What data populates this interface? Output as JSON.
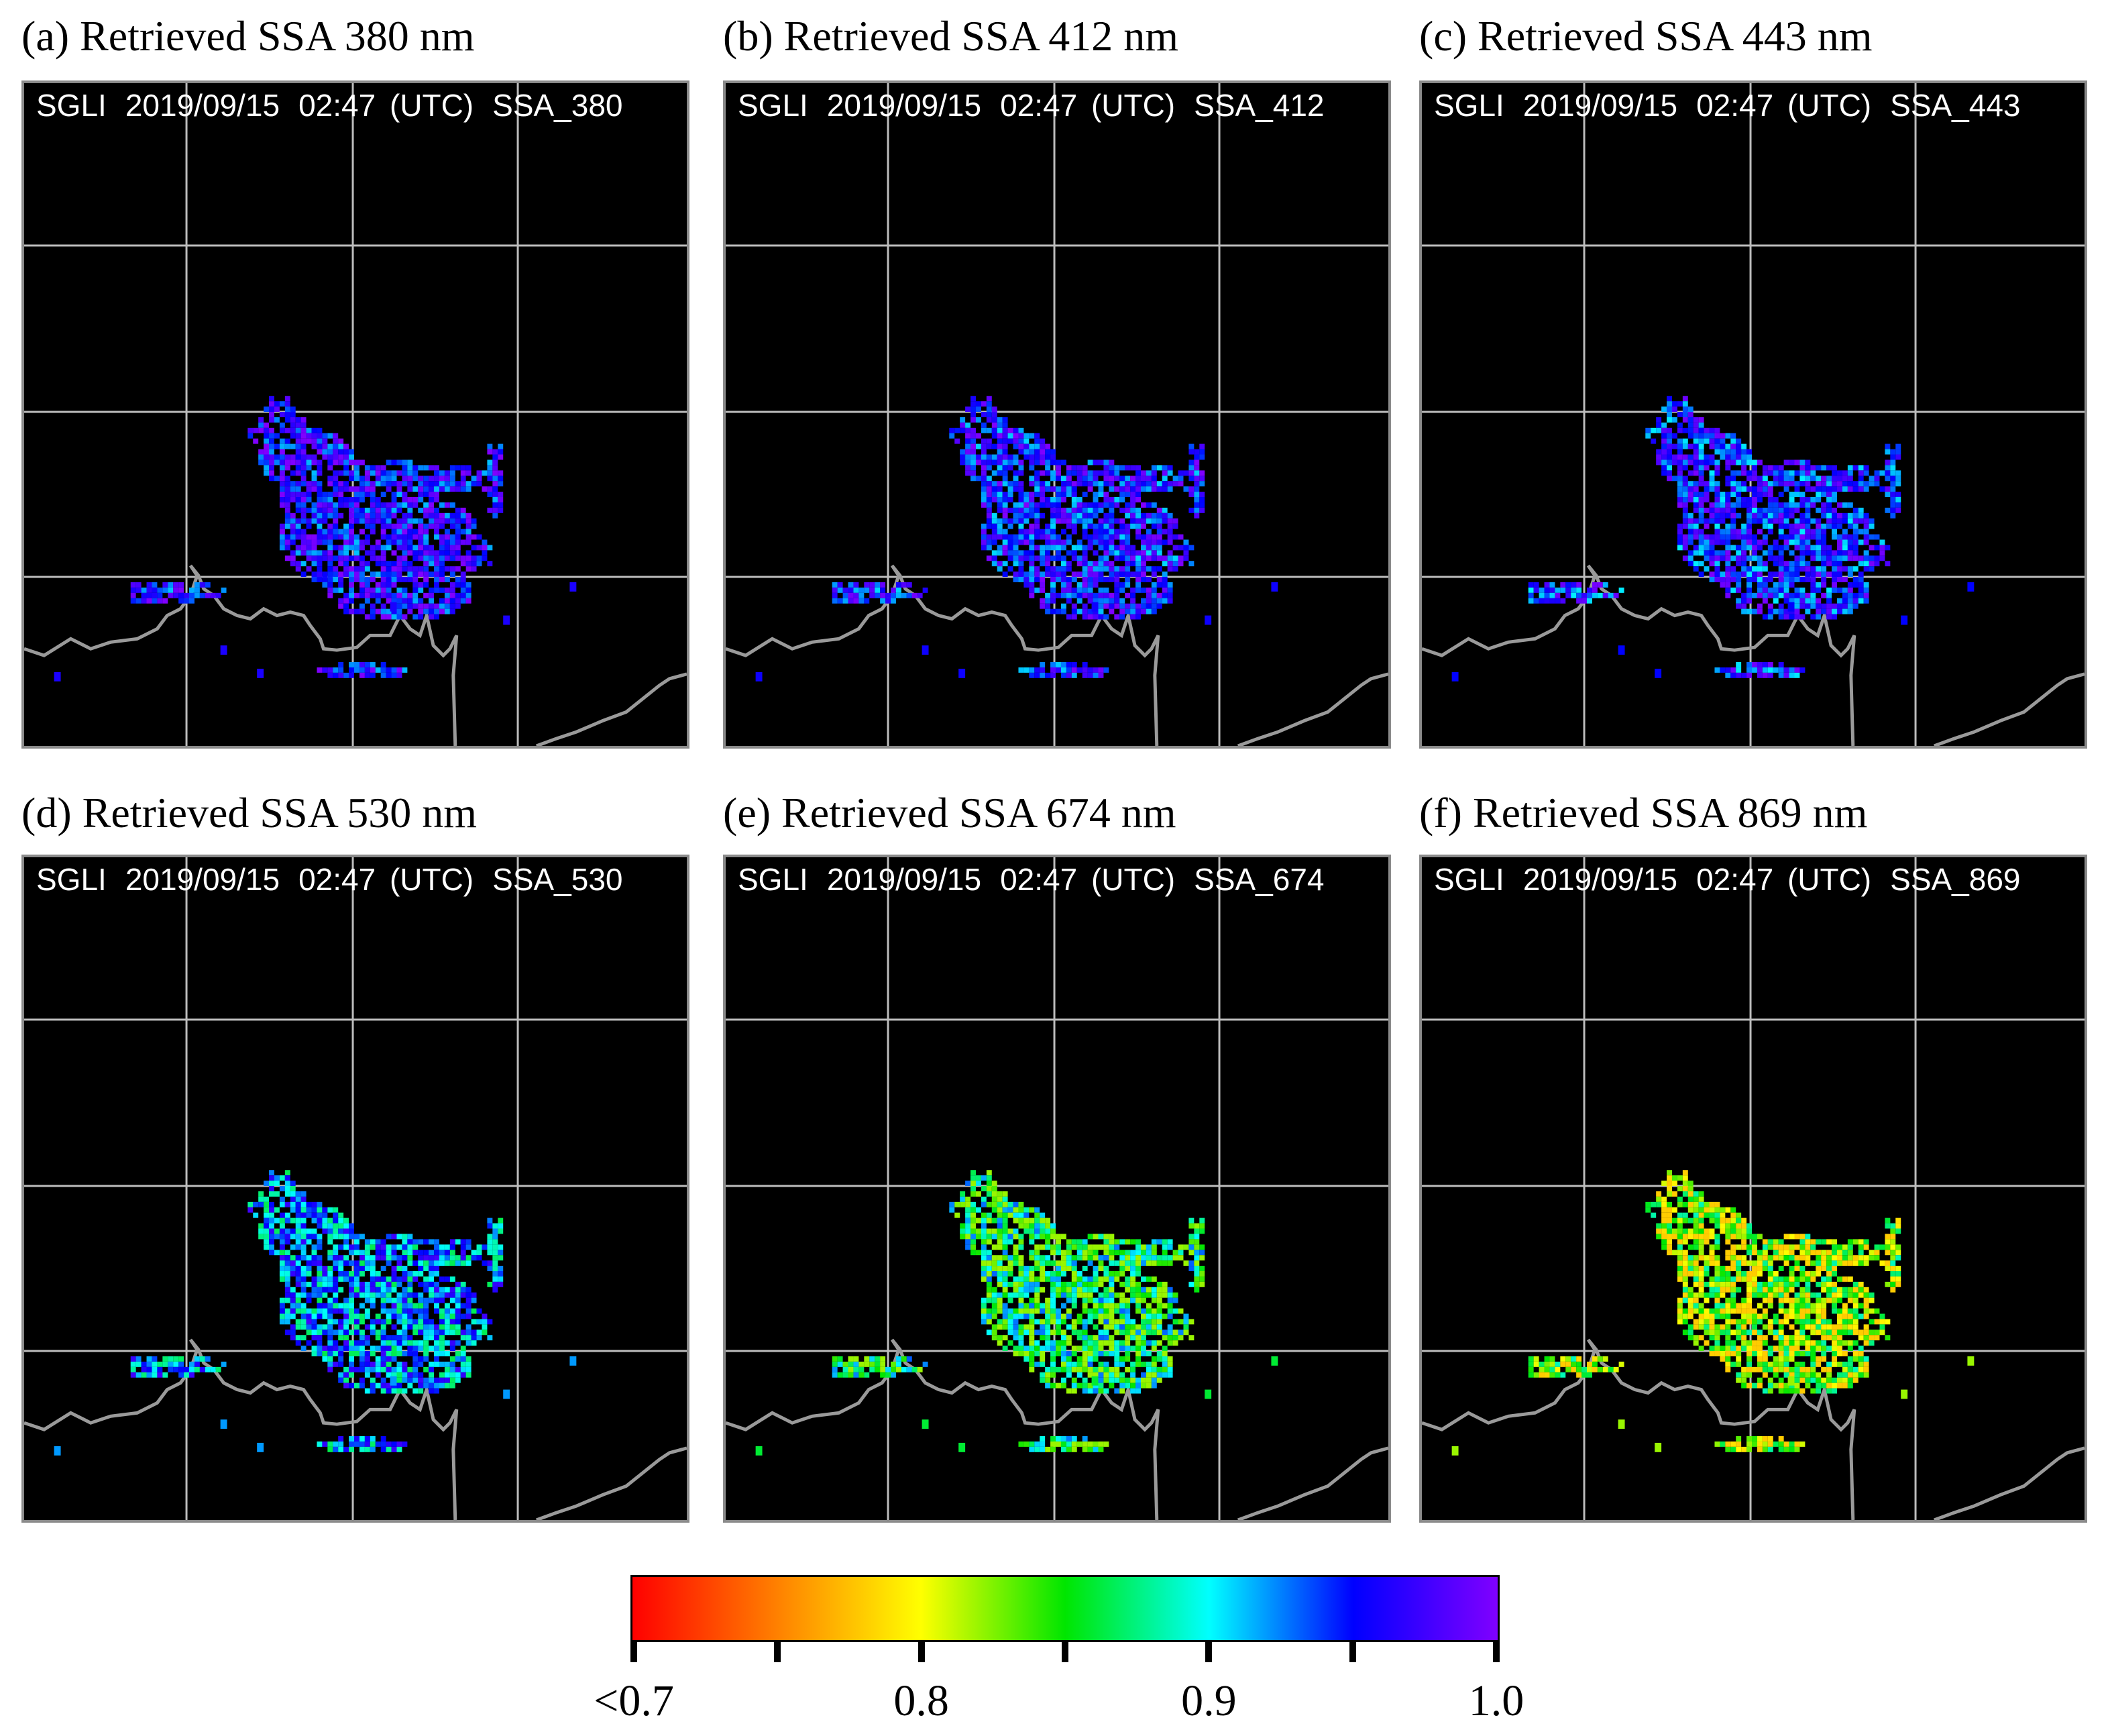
{
  "chart_data": [
    {
      "type": "heatmap",
      "panel": "a",
      "title": "(a) Retrieved SSA 380 nm",
      "header": {
        "sensor": "SGLI",
        "date": "2019/09/15",
        "time": "02:47 (UTC)",
        "product": "SSA_380"
      },
      "dominant_ssa": 0.96,
      "value_range": [
        0.88,
        1.0
      ]
    },
    {
      "type": "heatmap",
      "panel": "b",
      "title": "(b) Retrieved SSA 412 nm",
      "header": {
        "sensor": "SGLI",
        "date": "2019/09/15",
        "time": "02:47 (UTC)",
        "product": "SSA_412"
      },
      "dominant_ssa": 0.955,
      "value_range": [
        0.88,
        1.0
      ]
    },
    {
      "type": "heatmap",
      "panel": "c",
      "title": "(c) Retrieved SSA 443 nm",
      "header": {
        "sensor": "SGLI",
        "date": "2019/09/15",
        "time": "02:47 (UTC)",
        "product": "SSA_443"
      },
      "dominant_ssa": 0.95,
      "value_range": [
        0.88,
        1.0
      ]
    },
    {
      "type": "heatmap",
      "panel": "d",
      "title": "(d) Retrieved SSA 530 nm",
      "header": {
        "sensor": "SGLI",
        "date": "2019/09/15",
        "time": "02:47 (UTC)",
        "product": "SSA_530"
      },
      "dominant_ssa": 0.92,
      "value_range": [
        0.86,
        1.0
      ]
    },
    {
      "type": "heatmap",
      "panel": "e",
      "title": "(e) Retrieved SSA 674 nm",
      "header": {
        "sensor": "SGLI",
        "date": "2019/09/15",
        "time": "02:47 (UTC)",
        "product": "SSA_674"
      },
      "dominant_ssa": 0.86,
      "value_range": [
        0.82,
        1.0
      ]
    },
    {
      "type": "heatmap",
      "panel": "f",
      "title": "(f) Retrieved SSA 869 nm",
      "header": {
        "sensor": "SGLI",
        "date": "2019/09/15",
        "time": "02:47 (UTC)",
        "product": "SSA_869"
      },
      "dominant_ssa": 0.82,
      "value_range": [
        0.78,
        0.95
      ]
    }
  ],
  "colorbar": {
    "min": 0.7,
    "max": 1.0,
    "tick_labels": [
      "<0.7",
      "0.8",
      "0.9",
      "1.0"
    ],
    "tick_label_values": [
      0.7,
      0.8,
      0.9,
      1.0
    ],
    "tick_values": [
      0.7,
      0.75,
      0.8,
      0.85,
      0.9,
      0.95,
      1.0
    ],
    "colors": [
      "#ff0000",
      "#ff8000",
      "#ffff00",
      "#00e600",
      "#00ffff",
      "#0000ff",
      "#8000ff"
    ]
  },
  "map": {
    "background_color": "#000000",
    "grid_color": "#bdbdbd",
    "coastline_color": "#9a9a9a"
  }
}
